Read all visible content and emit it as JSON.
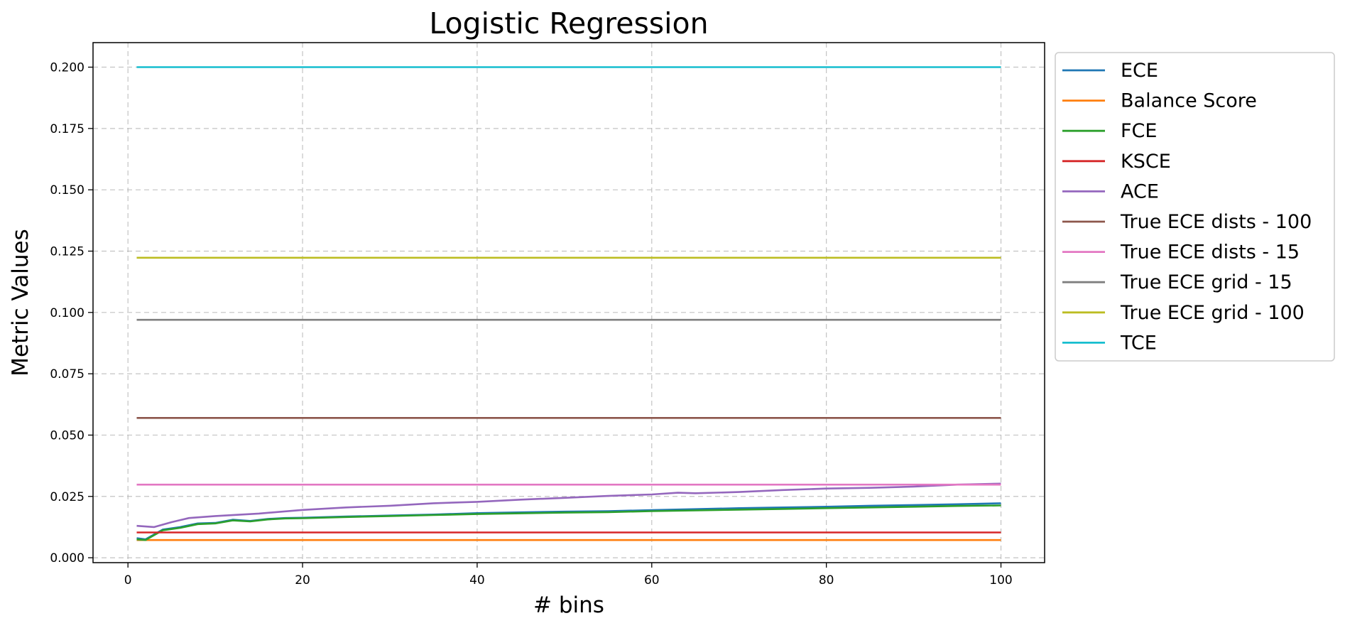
{
  "chart_data": {
    "type": "line",
    "title": "Logistic Regression",
    "xlabel": "# bins",
    "ylabel": "Metric Values",
    "xlim": [
      -4,
      105
    ],
    "ylim": [
      -0.002,
      0.21
    ],
    "xticks": [
      0,
      20,
      40,
      60,
      80,
      100
    ],
    "yticks": [
      "0.000",
      "0.025",
      "0.050",
      "0.075",
      "0.100",
      "0.125",
      "0.150",
      "0.175",
      "0.200"
    ],
    "grid": true,
    "legend_position": "outside-upper-right",
    "series": [
      {
        "name": "ECE",
        "color": "#1f77b4",
        "type": "growing",
        "points": [
          [
            1,
            0.008
          ],
          [
            2,
            0.0075
          ],
          [
            3,
            0.0095
          ],
          [
            4,
            0.0115
          ],
          [
            6,
            0.0125
          ],
          [
            8,
            0.014
          ],
          [
            10,
            0.0142
          ],
          [
            12,
            0.0155
          ],
          [
            14,
            0.015
          ],
          [
            16,
            0.0158
          ],
          [
            18,
            0.0162
          ],
          [
            20,
            0.0163
          ],
          [
            25,
            0.0168
          ],
          [
            30,
            0.0172
          ],
          [
            35,
            0.0176
          ],
          [
            40,
            0.0182
          ],
          [
            45,
            0.0185
          ],
          [
            50,
            0.0188
          ],
          [
            55,
            0.019
          ],
          [
            60,
            0.0194
          ],
          [
            65,
            0.0198
          ],
          [
            70,
            0.0202
          ],
          [
            75,
            0.0205
          ],
          [
            80,
            0.0208
          ],
          [
            85,
            0.0212
          ],
          [
            90,
            0.0215
          ],
          [
            95,
            0.0218
          ],
          [
            100,
            0.0222
          ]
        ]
      },
      {
        "name": "Balance Score",
        "color": "#ff7f0e",
        "type": "constant",
        "value": 0.0072
      },
      {
        "name": "FCE",
        "color": "#2ca02c",
        "type": "growing",
        "points": [
          [
            1,
            0.0075
          ],
          [
            2,
            0.0072
          ],
          [
            3,
            0.0092
          ],
          [
            4,
            0.0112
          ],
          [
            6,
            0.0122
          ],
          [
            8,
            0.0137
          ],
          [
            10,
            0.014
          ],
          [
            12,
            0.0152
          ],
          [
            14,
            0.0148
          ],
          [
            16,
            0.0156
          ],
          [
            18,
            0.016
          ],
          [
            20,
            0.0161
          ],
          [
            25,
            0.0166
          ],
          [
            30,
            0.017
          ],
          [
            35,
            0.0174
          ],
          [
            40,
            0.0178
          ],
          [
            45,
            0.0181
          ],
          [
            50,
            0.0184
          ],
          [
            55,
            0.0186
          ],
          [
            60,
            0.019
          ],
          [
            65,
            0.0193
          ],
          [
            70,
            0.0196
          ],
          [
            75,
            0.0199
          ],
          [
            80,
            0.0202
          ],
          [
            85,
            0.0205
          ],
          [
            90,
            0.0208
          ],
          [
            95,
            0.0211
          ],
          [
            100,
            0.0213
          ]
        ]
      },
      {
        "name": "KSCE",
        "color": "#d62728",
        "type": "constant",
        "value": 0.0103
      },
      {
        "name": "ACE",
        "color": "#9467bd",
        "type": "growing",
        "points": [
          [
            1,
            0.013
          ],
          [
            3,
            0.0125
          ],
          [
            5,
            0.0145
          ],
          [
            7,
            0.0162
          ],
          [
            10,
            0.017
          ],
          [
            15,
            0.018
          ],
          [
            20,
            0.0195
          ],
          [
            25,
            0.0205
          ],
          [
            30,
            0.0212
          ],
          [
            35,
            0.0222
          ],
          [
            40,
            0.0228
          ],
          [
            45,
            0.0237
          ],
          [
            50,
            0.0244
          ],
          [
            55,
            0.0252
          ],
          [
            60,
            0.0258
          ],
          [
            63,
            0.0265
          ],
          [
            65,
            0.0263
          ],
          [
            70,
            0.0268
          ],
          [
            75,
            0.0276
          ],
          [
            80,
            0.0282
          ],
          [
            85,
            0.0285
          ],
          [
            90,
            0.029
          ],
          [
            95,
            0.0298
          ],
          [
            100,
            0.0302
          ]
        ]
      },
      {
        "name": "True ECE dists - 100",
        "color": "#8c564b",
        "type": "constant",
        "value": 0.057
      },
      {
        "name": "True ECE dists - 15",
        "color": "#e377c2",
        "type": "constant",
        "value": 0.0298
      },
      {
        "name": "True ECE grid - 15",
        "color": "#7f7f7f",
        "type": "constant",
        "value": 0.097
      },
      {
        "name": "True ECE grid - 100",
        "color": "#bcbd22",
        "type": "constant",
        "value": 0.1223
      },
      {
        "name": "TCE",
        "color": "#17becf",
        "type": "constant",
        "value": 0.2
      }
    ]
  }
}
